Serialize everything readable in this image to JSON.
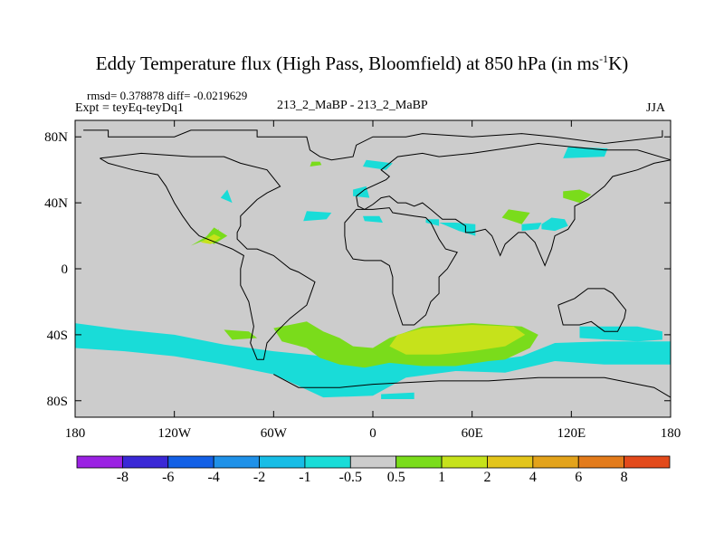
{
  "chart_data": {
    "type": "contour-map",
    "title_main": "Eddy Temperature flux (High Pass, Bloomfield) at 850 hPa (in ms",
    "title_sup": "-1",
    "title_end": "K)",
    "stats": "rmsd= 0.378878 diff= -0.0219629",
    "expt": "Expt = teyEq-teyDq1",
    "center_label": "213_2_MaBP - 213_2_MaBP",
    "season": "JJA",
    "x_ticks": [
      {
        "value": -180,
        "label": "180"
      },
      {
        "value": -120,
        "label": "120W"
      },
      {
        "value": -60,
        "label": "60W"
      },
      {
        "value": 0,
        "label": "0"
      },
      {
        "value": 60,
        "label": "60E"
      },
      {
        "value": 120,
        "label": "120E"
      },
      {
        "value": 180,
        "label": "180"
      }
    ],
    "y_ticks": [
      {
        "value": 80,
        "label": "80N"
      },
      {
        "value": 40,
        "label": "40N"
      },
      {
        "value": 0,
        "label": "0"
      },
      {
        "value": -40,
        "label": "40S"
      },
      {
        "value": -80,
        "label": "80S"
      }
    ],
    "xlim": [
      -180,
      180
    ],
    "ylim": [
      -90,
      90
    ],
    "colorbar": {
      "colors": [
        "#9b22e3",
        "#3a28d6",
        "#1360e6",
        "#1f91e8",
        "#17bde6",
        "#19dcd8",
        "#cccccc",
        "#7adc1b",
        "#c6e21b",
        "#e3c51b",
        "#e3a31b",
        "#e37b1b",
        "#e34a1b"
      ],
      "labels": [
        "-8",
        "-6",
        "-4",
        "-2",
        "-1",
        "-0.5",
        "0.5",
        "1",
        "2",
        "4",
        "6",
        "8"
      ]
    },
    "regions": [
      {
        "level": "-0.5 to -1",
        "color": "#19dcd8",
        "polygons": [
          [
            [
              -180,
              -33
            ],
            [
              -150,
              -37
            ],
            [
              -120,
              -40
            ],
            [
              -90,
              -46
            ],
            [
              -60,
              -50
            ],
            [
              -30,
              -53
            ],
            [
              0,
              -56
            ],
            [
              30,
              -57
            ],
            [
              60,
              -57
            ],
            [
              90,
              -53
            ],
            [
              110,
              -45
            ],
            [
              140,
              -44
            ],
            [
              180,
              -44
            ],
            [
              180,
              -58
            ],
            [
              140,
              -58
            ],
            [
              110,
              -56
            ],
            [
              80,
              -63
            ],
            [
              50,
              -62
            ],
            [
              20,
              -66
            ],
            [
              0,
              -77
            ],
            [
              -30,
              -78
            ],
            [
              -60,
              -64
            ],
            [
              -90,
              -58
            ],
            [
              -120,
              -53
            ],
            [
              -150,
              -50
            ],
            [
              -180,
              -48
            ]
          ],
          [
            [
              -42,
              29
            ],
            [
              -28,
              30
            ],
            [
              -25,
              34
            ],
            [
              -40,
              35
            ]
          ],
          [
            [
              -12,
              44
            ],
            [
              -2,
              43
            ],
            [
              -4,
              50
            ],
            [
              -12,
              48
            ]
          ],
          [
            [
              -6,
              62
            ],
            [
              8,
              60
            ],
            [
              12,
              64
            ],
            [
              -4,
              66
            ]
          ],
          [
            [
              -92,
              43
            ],
            [
              -85,
              40
            ],
            [
              -88,
              48
            ]
          ],
          [
            [
              -5,
              29
            ],
            [
              6,
              28
            ],
            [
              4,
              32
            ],
            [
              -6,
              32
            ]
          ],
          [
            [
              32,
              28
            ],
            [
              40,
              26
            ],
            [
              40,
              30
            ],
            [
              32,
              30
            ]
          ],
          [
            [
              40,
              28
            ],
            [
              52,
              23
            ],
            [
              62,
              20
            ],
            [
              62,
              27
            ],
            [
              50,
              28
            ]
          ],
          [
            [
              90,
              23
            ],
            [
              100,
              24
            ],
            [
              102,
              28
            ],
            [
              90,
              27
            ]
          ],
          [
            [
              102,
              27
            ],
            [
              108,
              31
            ],
            [
              116,
              30
            ],
            [
              118,
              26
            ],
            [
              110,
              23
            ],
            [
              102,
              24
            ]
          ],
          [
            [
              115,
              67
            ],
            [
              140,
              68
            ],
            [
              142,
              73
            ],
            [
              118,
              74
            ]
          ],
          [
            [
              125,
              -35
            ],
            [
              160,
              -35
            ],
            [
              175,
              -38
            ],
            [
              175,
              -43
            ],
            [
              160,
              -44
            ],
            [
              125,
              -42
            ]
          ],
          [
            [
              5,
              -76
            ],
            [
              25,
              -75
            ],
            [
              25,
              -79
            ],
            [
              5,
              -79
            ]
          ]
        ]
      },
      {
        "level": "0.5 to 1",
        "color": "#7adc1b",
        "polygons": [
          [
            [
              -60,
              -36
            ],
            [
              -40,
              -32
            ],
            [
              -30,
              -38
            ],
            [
              -20,
              -42
            ],
            [
              -12,
              -47
            ],
            [
              0,
              -48
            ],
            [
              10,
              -42
            ],
            [
              30,
              -35
            ],
            [
              60,
              -33
            ],
            [
              90,
              -35
            ],
            [
              100,
              -40
            ],
            [
              95,
              -48
            ],
            [
              80,
              -55
            ],
            [
              70,
              -56
            ],
            [
              50,
              -59
            ],
            [
              30,
              -59
            ],
            [
              10,
              -57
            ],
            [
              -5,
              -60
            ],
            [
              -20,
              -58
            ],
            [
              -32,
              -54
            ],
            [
              -40,
              -48
            ],
            [
              -55,
              -44
            ]
          ],
          [
            [
              -90,
              -37
            ],
            [
              -75,
              -38
            ],
            [
              -70,
              -42
            ],
            [
              -85,
              -43
            ]
          ],
          [
            [
              -110,
              14
            ],
            [
              -100,
              20
            ],
            [
              -93,
              24
            ],
            [
              -95,
              20
            ],
            [
              -105,
              16
            ]
          ],
          [
            [
              -102,
              18
            ],
            [
              -96,
              25
            ],
            [
              -88,
              20
            ],
            [
              -96,
              15
            ]
          ],
          [
            [
              115,
              43
            ],
            [
              125,
              40
            ],
            [
              132,
              45
            ],
            [
              125,
              48
            ],
            [
              115,
              47
            ]
          ],
          [
            [
              78,
              31
            ],
            [
              90,
              27
            ],
            [
              95,
              34
            ],
            [
              82,
              36
            ]
          ],
          [
            [
              -38,
              62
            ],
            [
              -31,
              63
            ],
            [
              -32,
              65
            ],
            [
              -37,
              65
            ]
          ]
        ]
      },
      {
        "level": "1 to 2",
        "color": "#c6e21b",
        "polygons": [
          [
            [
              30,
              -36
            ],
            [
              60,
              -34
            ],
            [
              85,
              -35
            ],
            [
              92,
              -40
            ],
            [
              80,
              -47
            ],
            [
              60,
              -50
            ],
            [
              40,
              -52
            ],
            [
              20,
              -52
            ],
            [
              10,
              -47
            ],
            [
              15,
              -40
            ]
          ],
          [
            [
              -104,
              16
            ],
            [
              -96,
              21
            ],
            [
              -92,
              19
            ],
            [
              -98,
              15
            ]
          ]
        ]
      }
    ],
    "coastlines": [
      [
        [
          -175,
          84
        ],
        [
          -160,
          84
        ],
        [
          -160,
          80
        ],
        [
          -120,
          80
        ],
        [
          -110,
          84
        ],
        [
          -70,
          84
        ],
        [
          -70,
          80
        ],
        [
          -40,
          80
        ],
        [
          -38,
          72
        ],
        [
          -32,
          68
        ],
        [
          -25,
          66
        ],
        [
          -12,
          68
        ],
        [
          -10,
          75
        ],
        [
          0,
          80
        ],
        [
          20,
          80
        ],
        [
          30,
          82
        ],
        [
          60,
          80
        ],
        [
          90,
          82
        ],
        [
          110,
          80
        ],
        [
          140,
          76
        ],
        [
          175,
          80
        ],
        [
          175,
          84
        ]
      ],
      [
        [
          -165,
          67
        ],
        [
          -160,
          64
        ],
        [
          -145,
          60
        ],
        [
          -130,
          57
        ],
        [
          -125,
          50
        ],
        [
          -120,
          40
        ],
        [
          -115,
          32
        ],
        [
          -110,
          25
        ],
        [
          -105,
          20
        ],
        [
          -95,
          16
        ],
        [
          -85,
          12
        ],
        [
          -78,
          8
        ],
        [
          -80,
          0
        ],
        [
          -80,
          -10
        ],
        [
          -75,
          -20
        ],
        [
          -72,
          -35
        ],
        [
          -74,
          -45
        ],
        [
          -70,
          -55
        ],
        [
          -66,
          -55
        ],
        [
          -64,
          -45
        ],
        [
          -58,
          -38
        ],
        [
          -50,
          -30
        ],
        [
          -40,
          -22
        ],
        [
          -35,
          -8
        ],
        [
          -45,
          -2
        ],
        [
          -50,
          0
        ],
        [
          -60,
          8
        ],
        [
          -70,
          12
        ],
        [
          -76,
          12
        ],
        [
          -82,
          18
        ],
        [
          -82,
          22
        ],
        [
          -80,
          26
        ],
        [
          -80,
          32
        ],
        [
          -76,
          36
        ],
        [
          -70,
          42
        ],
        [
          -64,
          46
        ],
        [
          -56,
          50
        ],
        [
          -60,
          55
        ],
        [
          -64,
          60
        ],
        [
          -80,
          64
        ],
        [
          -90,
          68
        ],
        [
          -110,
          68
        ],
        [
          -140,
          70
        ],
        [
          -165,
          67
        ]
      ],
      [
        [
          -10,
          36
        ],
        [
          -17,
          28
        ],
        [
          -17,
          20
        ],
        [
          -16,
          12
        ],
        [
          -12,
          6
        ],
        [
          -5,
          5
        ],
        [
          5,
          5
        ],
        [
          10,
          2
        ],
        [
          12,
          -5
        ],
        [
          12,
          -15
        ],
        [
          15,
          -25
        ],
        [
          18,
          -34
        ],
        [
          25,
          -34
        ],
        [
          32,
          -28
        ],
        [
          35,
          -20
        ],
        [
          40,
          -15
        ],
        [
          40,
          -5
        ],
        [
          45,
          0
        ],
        [
          51,
          10
        ],
        [
          44,
          12
        ],
        [
          40,
          18
        ],
        [
          35,
          28
        ],
        [
          32,
          31
        ],
        [
          25,
          32
        ],
        [
          12,
          34
        ],
        [
          10,
          37
        ],
        [
          0,
          36
        ],
        [
          -10,
          36
        ]
      ],
      [
        [
          -10,
          44
        ],
        [
          -9,
          38
        ],
        [
          -5,
          36
        ],
        [
          0,
          39
        ],
        [
          5,
          43
        ],
        [
          10,
          44
        ],
        [
          15,
          40
        ],
        [
          20,
          40
        ],
        [
          25,
          38
        ],
        [
          30,
          40
        ],
        [
          35,
          36
        ],
        [
          42,
          30
        ],
        [
          50,
          30
        ],
        [
          56,
          26
        ],
        [
          56,
          22
        ],
        [
          60,
          22
        ],
        [
          68,
          24
        ],
        [
          72,
          20
        ],
        [
          77,
          8
        ],
        [
          80,
          15
        ],
        [
          88,
          22
        ],
        [
          92,
          22
        ],
        [
          98,
          16
        ],
        [
          104,
          2
        ],
        [
          108,
          12
        ],
        [
          110,
          20
        ],
        [
          118,
          24
        ],
        [
          122,
          30
        ],
        [
          122,
          38
        ],
        [
          130,
          42
        ],
        [
          140,
          50
        ],
        [
          145,
          56
        ],
        [
          160,
          60
        ],
        [
          170,
          64
        ],
        [
          180,
          66
        ],
        [
          160,
          72
        ],
        [
          140,
          72
        ],
        [
          120,
          74
        ],
        [
          100,
          76
        ],
        [
          80,
          73
        ],
        [
          60,
          70
        ],
        [
          40,
          68
        ],
        [
          30,
          70
        ],
        [
          15,
          68
        ],
        [
          5,
          60
        ],
        [
          10,
          56
        ],
        [
          8,
          54
        ],
        [
          -5,
          48
        ],
        [
          -10,
          44
        ]
      ],
      [
        [
          112,
          -22
        ],
        [
          115,
          -34
        ],
        [
          125,
          -34
        ],
        [
          132,
          -32
        ],
        [
          140,
          -38
        ],
        [
          148,
          -38
        ],
        [
          152,
          -30
        ],
        [
          153,
          -25
        ],
        [
          145,
          -15
        ],
        [
          140,
          -12
        ],
        [
          130,
          -12
        ],
        [
          122,
          -18
        ],
        [
          112,
          -22
        ]
      ],
      [
        [
          -60,
          -64
        ],
        [
          -45,
          -72
        ],
        [
          -20,
          -72
        ],
        [
          0,
          -70
        ],
        [
          40,
          -68
        ],
        [
          70,
          -68
        ],
        [
          100,
          -66
        ],
        [
          140,
          -66
        ],
        [
          170,
          -72
        ],
        [
          180,
          -78
        ]
      ]
    ]
  }
}
